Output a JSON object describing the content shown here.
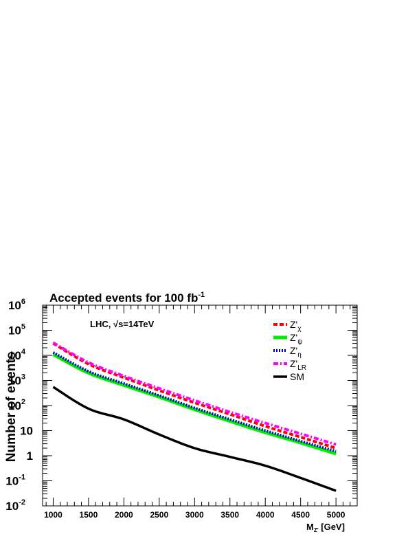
{
  "chart_data": {
    "type": "line",
    "title": "Accepted events for 100 fb",
    "title_sup": "-1",
    "annotation": "LHC, √s=14TeV",
    "xlabel": "M",
    "xlabel_sub": "Z'",
    "xlabel_unit": " [GeV]",
    "ylabel": "Number of events",
    "x_range": [
      850,
      5300
    ],
    "y_log": true,
    "y_range": [
      0.01,
      1000000
    ],
    "x_ticks": [
      1000,
      1500,
      2000,
      2500,
      3000,
      3500,
      4000,
      4500,
      5000
    ],
    "y_ticks": [
      {
        "value": 0.01,
        "base": "10",
        "exp": "-2"
      },
      {
        "value": 0.1,
        "base": "10",
        "exp": "-1"
      },
      {
        "value": 1,
        "base": "1",
        "exp": ""
      },
      {
        "value": 10,
        "base": "10",
        "exp": ""
      },
      {
        "value": 100,
        "base": "10",
        "exp": "2"
      },
      {
        "value": 1000,
        "base": "10",
        "exp": "3"
      },
      {
        "value": 10000,
        "base": "10",
        "exp": "4"
      },
      {
        "value": 100000,
        "base": "10",
        "exp": "5"
      },
      {
        "value": 1000000,
        "base": "10",
        "exp": "6"
      }
    ],
    "legend_position": "top-right",
    "x": [
      1000,
      1500,
      2000,
      2500,
      3000,
      3500,
      4000,
      4500,
      5000
    ],
    "series": [
      {
        "name": "Z'",
        "sub": "χ",
        "color": "#ff0000",
        "style": "dashed",
        "values": [
          30000,
          4500,
          1300,
          400,
          130,
          45,
          15,
          5.5,
          2.0
        ]
      },
      {
        "name": "Z'",
        "sub": "ψ",
        "color": "#00ee00",
        "style": "solid",
        "values": [
          11000,
          2000,
          650,
          220,
          70,
          24,
          8.5,
          3.3,
          1.2
        ]
      },
      {
        "name": "Z'",
        "sub": "η",
        "color": "#0000cc",
        "style": "dotted",
        "values": [
          13000,
          2300,
          750,
          250,
          80,
          28,
          10,
          3.8,
          1.5
        ]
      },
      {
        "name": "Z'",
        "sub": "LR",
        "color": "#ff00ff",
        "style": "dashdot",
        "values": [
          32000,
          5200,
          1500,
          480,
          160,
          55,
          20,
          7.5,
          2.8
        ]
      },
      {
        "name": "SM",
        "sub": "",
        "color": "#000000",
        "style": "solid",
        "values": [
          550,
          75,
          28,
          7,
          2,
          0.9,
          0.4,
          0.13,
          0.04
        ]
      }
    ]
  }
}
